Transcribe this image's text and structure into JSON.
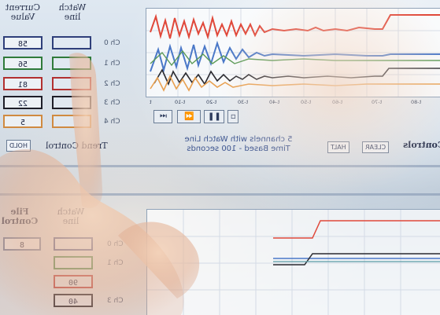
{
  "top_panel": {
    "headers": {
      "current_value": "Current Value",
      "watch_line": "Watch line"
    },
    "channels": [
      {
        "label": "Ch 0",
        "value": "58",
        "watch": "",
        "color": "#2f3f7a"
      },
      {
        "label": "Ch 1",
        "value": "56",
        "watch": "",
        "color": "#2f7a3a"
      },
      {
        "label": "Ch 2",
        "value": "81",
        "watch": "",
        "color": "#b23030"
      },
      {
        "label": "Ch 3",
        "value": "22",
        "watch": "",
        "color": "#1e1e28"
      },
      {
        "label": "Ch 4",
        "value": "5",
        "watch": "",
        "color": "#d08a40"
      }
    ],
    "x_ticks": [
      "t",
      "t-10",
      "t-20",
      "t-30",
      "t-40",
      "t-50",
      "t-60",
      "t-70",
      "t-80"
    ],
    "trend_control_label": "Trend Control",
    "hold_button": "HOLD",
    "clear_button": "CLEAR",
    "halt_button": "HALT",
    "caption_line1": "5 channels with Watch Line",
    "caption_line2": "Time Based - 100 seconds",
    "controls_label": "Controls"
  },
  "bottom_panel": {
    "headers": {
      "file_control": "File Control",
      "watch_line": "Watch line"
    },
    "channels": [
      {
        "label": "Ch 0",
        "value": "8"
      },
      {
        "label": "Ch 1",
        "value": ""
      },
      {
        "label": "Ch 2",
        "value": "90"
      },
      {
        "label": "Ch 3",
        "value": "40"
      }
    ]
  },
  "colors": {
    "red_trace": "#e0483a",
    "blue_trace": "#4a78c8",
    "dark_trace": "#2a2a30",
    "orange_trace": "#e8a050",
    "green_trace": "#5a9a56"
  }
}
